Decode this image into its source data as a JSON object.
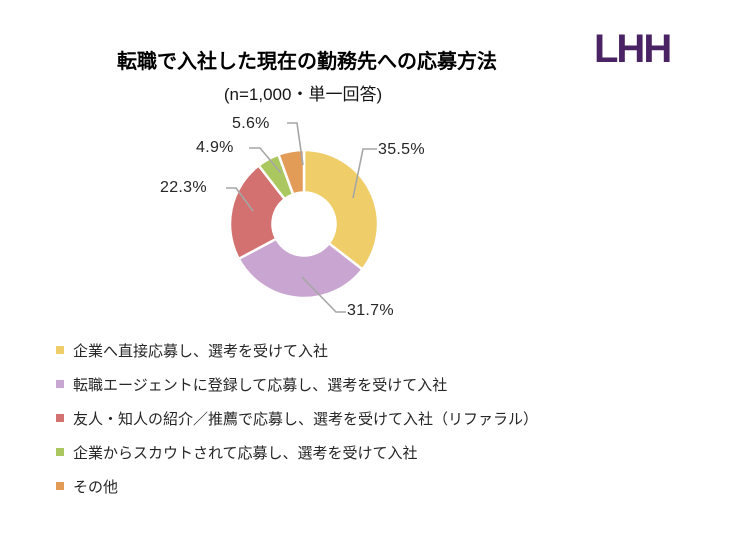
{
  "page": {
    "background": "#FFFFFF"
  },
  "logo": {
    "text": "LHH",
    "color": "#4A2365"
  },
  "chart_data": {
    "type": "pie",
    "variant": "donut",
    "title": "転職で入社した現在の勤務先への応募方法",
    "subtitle": "(n=1,000・単一回答)",
    "direction": "clockwise",
    "start_angle_deg": 0,
    "hole_ratio": 0.43,
    "leader_line_color": "#A6A6A6",
    "legend_position": "bottom-left",
    "slices": [
      {
        "label": "企業へ直接応募し、選考を受けて入社",
        "value": 35.5,
        "display": "35.5%",
        "color": "#EFCD69"
      },
      {
        "label": "転職エージェントに登録して応募し、選考を受けて入社",
        "value": 31.7,
        "display": "31.7%",
        "color": "#C9A5D1"
      },
      {
        "label": "友人・知人の紹介／推薦で応募し、選考を受けて入社（リファラル）",
        "value": 22.3,
        "display": "22.3%",
        "color": "#D37070"
      },
      {
        "label": "企業からスカウトされて応募し、選考を受けて入社",
        "value": 4.9,
        "display": "4.9%",
        "color": "#ABC75F"
      },
      {
        "label": "その他",
        "value": 5.6,
        "display": "5.6%",
        "color": "#E39C58"
      }
    ]
  }
}
